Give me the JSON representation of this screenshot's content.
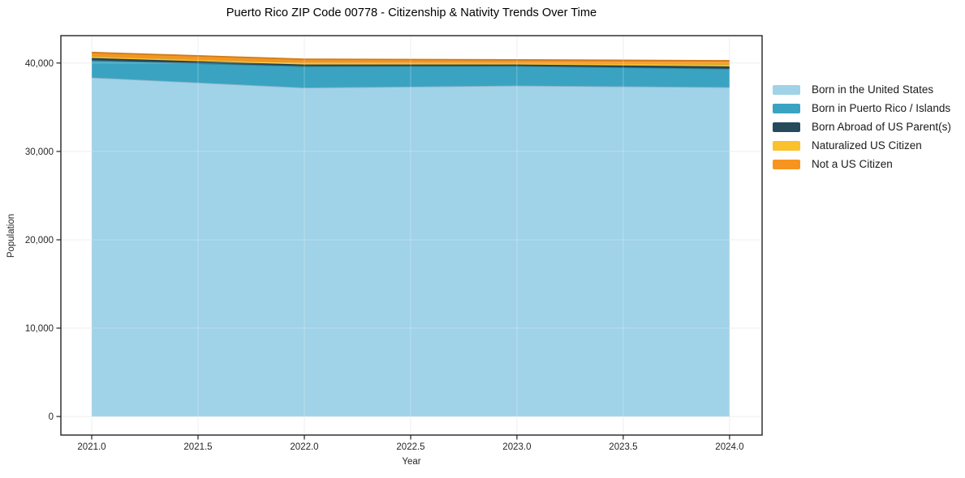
{
  "chart_data": {
    "type": "area",
    "stacked": true,
    "title": "Puerto Rico ZIP Code 00778 - Citizenship & Nativity Trends Over Time",
    "xlabel": "Year",
    "ylabel": "Population",
    "x": [
      2021,
      2022,
      2023,
      2024
    ],
    "series": [
      {
        "name": "Born in the United States",
        "color": "#a0d2e8",
        "values": [
          38370,
          37220,
          37450,
          37270
        ]
      },
      {
        "name": "Born in Puerto Rico / Islands",
        "color": "#3aa3c1",
        "values": [
          1930,
          2410,
          2210,
          2080
        ]
      },
      {
        "name": "Born Abroad of US Parent(s)",
        "color": "#254a5c",
        "values": [
          270,
          210,
          180,
          270
        ]
      },
      {
        "name": "Naturalized US Citizen",
        "color": "#fbc12d",
        "values": [
          220,
          220,
          180,
          270
        ]
      },
      {
        "name": "Not a US Citizen",
        "color": "#f79420",
        "values": [
          400,
          370,
          340,
          370
        ]
      }
    ],
    "x_ticks": [
      "2021.0",
      "2021.5",
      "2022.0",
      "2022.5",
      "2023.0",
      "2023.5",
      "2024.0"
    ],
    "x_tick_values": [
      2021,
      2021.5,
      2022,
      2022.5,
      2023,
      2023.5,
      2024
    ],
    "y_ticks": [
      "0",
      "10,000",
      "20,000",
      "30,000",
      "40,000"
    ],
    "y_tick_values": [
      0,
      10000,
      20000,
      30000,
      40000
    ],
    "x_range": [
      2020.855,
      2024.153
    ],
    "y_range": [
      -2100,
      43100
    ],
    "grid": true,
    "legend_position": "right",
    "colors": {
      "grid": "#e9e9e9",
      "spine": "#222222",
      "tick_label": "#262626",
      "background": "#ffffff"
    }
  }
}
